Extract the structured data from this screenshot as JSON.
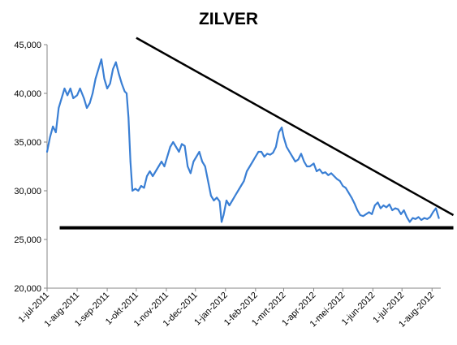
{
  "chart_data": {
    "type": "line",
    "title": "ZILVER",
    "xlabel": "",
    "ylabel": "",
    "ylim": [
      20000,
      45000
    ],
    "yticks": [
      20000,
      25000,
      30000,
      35000,
      40000,
      45000
    ],
    "ytick_labels": [
      "20,000",
      "25,000",
      "30,000",
      "35,000",
      "40,000",
      "45,000"
    ],
    "x_range": [
      "2011-07-01",
      "2012-08-10"
    ],
    "xticks": [
      "2011-07-01",
      "2011-08-01",
      "2011-09-01",
      "2011-10-01",
      "2011-11-01",
      "2011-12-01",
      "2012-01-01",
      "2012-02-01",
      "2012-03-01",
      "2012-04-01",
      "2012-05-01",
      "2012-06-01",
      "2012-07-01",
      "2012-08-01"
    ],
    "xtick_labels": [
      "1-jul-2011",
      "1-aug-2011",
      "1-sep-2011",
      "1-okt-2011",
      "1-nov-2011",
      "1-dec-2011",
      "1-jan-2012",
      "1-feb-2012",
      "1-mrt-2012",
      "1-apr-2012",
      "1-mei-2012",
      "1-jun-2012",
      "1-jul-2012",
      "1-aug-2012"
    ],
    "grid": false,
    "legend": "none",
    "series": [
      {
        "color": "#3a7fd4",
        "points": [
          [
            "2011-07-01",
            34000
          ],
          [
            "2011-07-04",
            35500
          ],
          [
            "2011-07-07",
            36600
          ],
          [
            "2011-07-10",
            36000
          ],
          [
            "2011-07-13",
            38500
          ],
          [
            "2011-07-16",
            39500
          ],
          [
            "2011-07-19",
            40500
          ],
          [
            "2011-07-22",
            39800
          ],
          [
            "2011-07-25",
            40500
          ],
          [
            "2011-07-28",
            39500
          ],
          [
            "2011-08-01",
            39800
          ],
          [
            "2011-08-04",
            40500
          ],
          [
            "2011-08-08",
            39500
          ],
          [
            "2011-08-11",
            38500
          ],
          [
            "2011-08-14",
            39000
          ],
          [
            "2011-08-17",
            40000
          ],
          [
            "2011-08-20",
            41500
          ],
          [
            "2011-08-23",
            42500
          ],
          [
            "2011-08-26",
            43500
          ],
          [
            "2011-08-29",
            41500
          ],
          [
            "2011-09-01",
            40500
          ],
          [
            "2011-09-04",
            41000
          ],
          [
            "2011-09-07",
            42500
          ],
          [
            "2011-09-10",
            43200
          ],
          [
            "2011-09-13",
            42000
          ],
          [
            "2011-09-16",
            41000
          ],
          [
            "2011-09-19",
            40200
          ],
          [
            "2011-09-21",
            40000
          ],
          [
            "2011-09-23",
            37500
          ],
          [
            "2011-09-25",
            33000
          ],
          [
            "2011-09-27",
            30000
          ],
          [
            "2011-09-30",
            30200
          ],
          [
            "2011-10-03",
            30000
          ],
          [
            "2011-10-06",
            30500
          ],
          [
            "2011-10-09",
            30300
          ],
          [
            "2011-10-12",
            31500
          ],
          [
            "2011-10-15",
            32000
          ],
          [
            "2011-10-18",
            31500
          ],
          [
            "2011-10-21",
            32000
          ],
          [
            "2011-10-24",
            32500
          ],
          [
            "2011-10-27",
            33000
          ],
          [
            "2011-10-30",
            32500
          ],
          [
            "2011-11-02",
            33500
          ],
          [
            "2011-11-05",
            34500
          ],
          [
            "2011-11-08",
            35000
          ],
          [
            "2011-11-11",
            34500
          ],
          [
            "2011-11-14",
            34000
          ],
          [
            "2011-11-17",
            34800
          ],
          [
            "2011-11-20",
            34600
          ],
          [
            "2011-11-23",
            32500
          ],
          [
            "2011-11-26",
            31800
          ],
          [
            "2011-11-29",
            33000
          ],
          [
            "2011-12-02",
            33500
          ],
          [
            "2011-12-05",
            34000
          ],
          [
            "2011-12-08",
            33000
          ],
          [
            "2011-12-11",
            32500
          ],
          [
            "2011-12-14",
            31000
          ],
          [
            "2011-12-17",
            29500
          ],
          [
            "2011-12-20",
            29000
          ],
          [
            "2011-12-23",
            29300
          ],
          [
            "2011-12-26",
            28900
          ],
          [
            "2011-12-28",
            26800
          ],
          [
            "2011-12-30",
            27500
          ],
          [
            "2012-01-02",
            29000
          ],
          [
            "2012-01-05",
            28500
          ],
          [
            "2012-01-08",
            29000
          ],
          [
            "2012-01-11",
            29500
          ],
          [
            "2012-01-14",
            30000
          ],
          [
            "2012-01-17",
            30500
          ],
          [
            "2012-01-20",
            31000
          ],
          [
            "2012-01-23",
            32000
          ],
          [
            "2012-01-26",
            32500
          ],
          [
            "2012-01-29",
            33000
          ],
          [
            "2012-02-01",
            33500
          ],
          [
            "2012-02-04",
            34000
          ],
          [
            "2012-02-07",
            34000
          ],
          [
            "2012-02-10",
            33500
          ],
          [
            "2012-02-13",
            33800
          ],
          [
            "2012-02-16",
            33700
          ],
          [
            "2012-02-19",
            33900
          ],
          [
            "2012-02-22",
            34500
          ],
          [
            "2012-02-25",
            36000
          ],
          [
            "2012-02-28",
            36500
          ],
          [
            "2012-03-01",
            35500
          ],
          [
            "2012-03-04",
            34500
          ],
          [
            "2012-03-07",
            34000
          ],
          [
            "2012-03-10",
            33500
          ],
          [
            "2012-03-13",
            33000
          ],
          [
            "2012-03-16",
            33200
          ],
          [
            "2012-03-19",
            33800
          ],
          [
            "2012-03-22",
            33000
          ],
          [
            "2012-03-25",
            32500
          ],
          [
            "2012-03-28",
            32500
          ],
          [
            "2012-04-01",
            32800
          ],
          [
            "2012-04-04",
            32000
          ],
          [
            "2012-04-07",
            32200
          ],
          [
            "2012-04-10",
            31800
          ],
          [
            "2012-04-13",
            31900
          ],
          [
            "2012-04-16",
            31600
          ],
          [
            "2012-04-19",
            31800
          ],
          [
            "2012-04-22",
            31500
          ],
          [
            "2012-04-25",
            31200
          ],
          [
            "2012-04-28",
            31000
          ],
          [
            "2012-05-01",
            30500
          ],
          [
            "2012-05-04",
            30300
          ],
          [
            "2012-05-07",
            29800
          ],
          [
            "2012-05-10",
            29300
          ],
          [
            "2012-05-13",
            28700
          ],
          [
            "2012-05-16",
            28000
          ],
          [
            "2012-05-19",
            27500
          ],
          [
            "2012-05-22",
            27400
          ],
          [
            "2012-05-25",
            27600
          ],
          [
            "2012-05-28",
            27800
          ],
          [
            "2012-05-31",
            27600
          ],
          [
            "2012-06-03",
            28500
          ],
          [
            "2012-06-06",
            28800
          ],
          [
            "2012-06-09",
            28200
          ],
          [
            "2012-06-12",
            28500
          ],
          [
            "2012-06-15",
            28300
          ],
          [
            "2012-06-18",
            28600
          ],
          [
            "2012-06-21",
            28000
          ],
          [
            "2012-06-24",
            28200
          ],
          [
            "2012-06-27",
            28100
          ],
          [
            "2012-06-30",
            27600
          ],
          [
            "2012-07-03",
            28000
          ],
          [
            "2012-07-06",
            27300
          ],
          [
            "2012-07-09",
            26800
          ],
          [
            "2012-07-12",
            27200
          ],
          [
            "2012-07-15",
            27100
          ],
          [
            "2012-07-18",
            27300
          ],
          [
            "2012-07-21",
            27000
          ],
          [
            "2012-07-24",
            27200
          ],
          [
            "2012-07-27",
            27100
          ],
          [
            "2012-07-30",
            27300
          ],
          [
            "2012-08-02",
            27800
          ],
          [
            "2012-08-05",
            28200
          ],
          [
            "2012-08-08",
            27200
          ]
        ]
      }
    ],
    "annotations": [
      {
        "type": "line",
        "color": "#000000",
        "from": [
          "2011-10-01",
          45700
        ],
        "to": [
          "2012-08-23",
          27500
        ]
      },
      {
        "type": "line",
        "color": "#000000",
        "from": [
          "2011-07-14",
          26200
        ],
        "to": [
          "2012-08-23",
          26200
        ]
      }
    ]
  }
}
